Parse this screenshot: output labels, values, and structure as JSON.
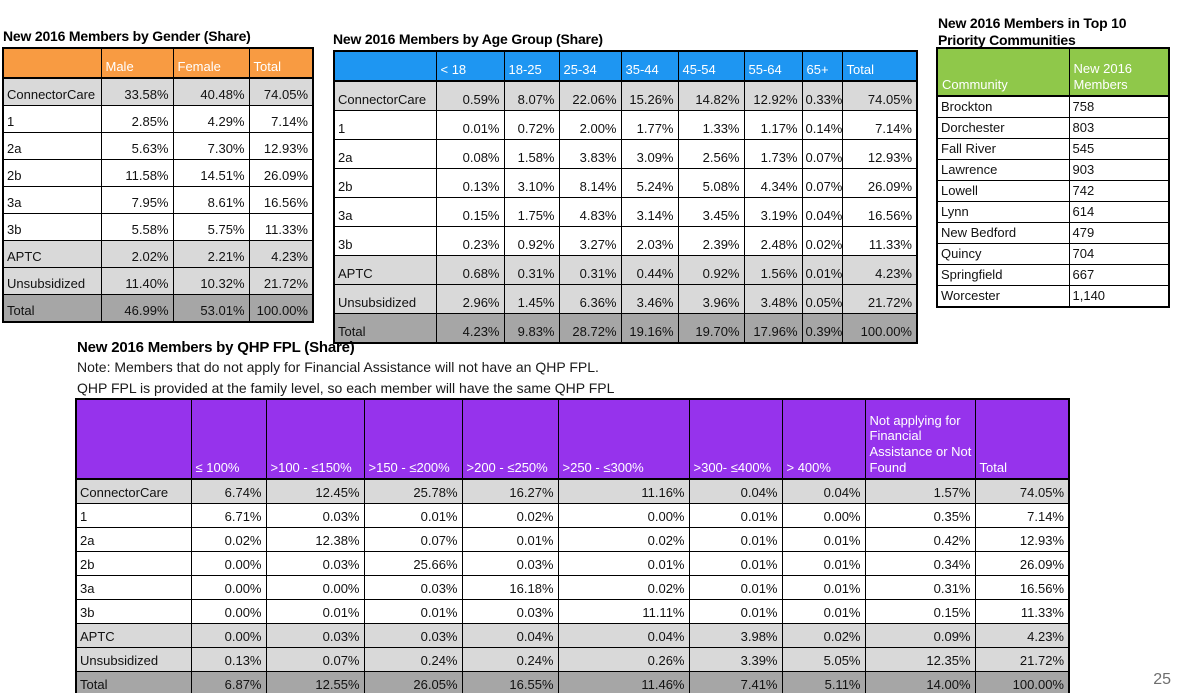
{
  "slide": {
    "page_number": "25"
  },
  "colors": {
    "orange": "#F89B42",
    "blue": "#1E96F2",
    "green": "#8FC84A",
    "purple": "#9633EC",
    "row_shade_light": "#D9D9D9",
    "row_shade_total": "#A6A6A6",
    "header_text": "#FFFFFF",
    "page_number_gray": "#6E6E6E"
  },
  "gender_table": {
    "title": "New 2016 Members by Gender (Share)",
    "columns": [
      "",
      "Male",
      "Female",
      "Total"
    ],
    "rows": [
      {
        "label": "ConnectorCare",
        "shade": "light",
        "values": [
          "33.58%",
          "40.48%",
          "74.05%"
        ]
      },
      {
        "label": "1",
        "shade": "white",
        "values": [
          "2.85%",
          "4.29%",
          "7.14%"
        ]
      },
      {
        "label": "2a",
        "shade": "white",
        "values": [
          "5.63%",
          "7.30%",
          "12.93%"
        ]
      },
      {
        "label": "2b",
        "shade": "white",
        "values": [
          "11.58%",
          "14.51%",
          "26.09%"
        ]
      },
      {
        "label": "3a",
        "shade": "white",
        "values": [
          "7.95%",
          "8.61%",
          "16.56%"
        ]
      },
      {
        "label": "3b",
        "shade": "white",
        "values": [
          "5.58%",
          "5.75%",
          "11.33%"
        ]
      },
      {
        "label": "APTC",
        "shade": "light",
        "values": [
          "2.02%",
          "2.21%",
          "4.23%"
        ]
      },
      {
        "label": "Unsubsidized",
        "shade": "light",
        "values": [
          "11.40%",
          "10.32%",
          "21.72%"
        ]
      },
      {
        "label": "Total",
        "shade": "total",
        "values": [
          "46.99%",
          "53.01%",
          "100.00%"
        ]
      }
    ]
  },
  "age_table": {
    "title": "New 2016 Members by Age Group (Share)",
    "columns": [
      "",
      "< 18",
      "18-25",
      "25-34",
      "35-44",
      "45-54",
      "55-64",
      "65+",
      "Total"
    ],
    "rows": [
      {
        "label": "ConnectorCare",
        "shade": "light",
        "values": [
          "0.59%",
          "8.07%",
          "22.06%",
          "15.26%",
          "14.82%",
          "12.92%",
          "0.33%",
          "74.05%"
        ]
      },
      {
        "label": "1",
        "shade": "white",
        "values": [
          "0.01%",
          "0.72%",
          "2.00%",
          "1.77%",
          "1.33%",
          "1.17%",
          "0.14%",
          "7.14%"
        ]
      },
      {
        "label": "2a",
        "shade": "white",
        "values": [
          "0.08%",
          "1.58%",
          "3.83%",
          "3.09%",
          "2.56%",
          "1.73%",
          "0.07%",
          "12.93%"
        ]
      },
      {
        "label": "2b",
        "shade": "white",
        "values": [
          "0.13%",
          "3.10%",
          "8.14%",
          "5.24%",
          "5.08%",
          "4.34%",
          "0.07%",
          "26.09%"
        ]
      },
      {
        "label": "3a",
        "shade": "white",
        "values": [
          "0.15%",
          "1.75%",
          "4.83%",
          "3.14%",
          "3.45%",
          "3.19%",
          "0.04%",
          "16.56%"
        ]
      },
      {
        "label": "3b",
        "shade": "white",
        "values": [
          "0.23%",
          "0.92%",
          "3.27%",
          "2.03%",
          "2.39%",
          "2.48%",
          "0.02%",
          "11.33%"
        ]
      },
      {
        "label": "APTC",
        "shade": "light",
        "values": [
          "0.68%",
          "0.31%",
          "0.31%",
          "0.44%",
          "0.92%",
          "1.56%",
          "0.01%",
          "4.23%"
        ]
      },
      {
        "label": "Unsubsidized",
        "shade": "light",
        "values": [
          "2.96%",
          "1.45%",
          "6.36%",
          "3.46%",
          "3.96%",
          "3.48%",
          "0.05%",
          "21.72%"
        ]
      },
      {
        "label": "Total",
        "shade": "total",
        "values": [
          "4.23%",
          "9.83%",
          "28.72%",
          "19.16%",
          "19.70%",
          "17.96%",
          "0.39%",
          "100.00%"
        ]
      }
    ]
  },
  "communities_table": {
    "title": "New 2016 Members in Top 10 Priority Communities",
    "columns": [
      "Community",
      "New 2016 Members"
    ],
    "rows": [
      {
        "label": "Brockton",
        "shade": "white",
        "values": [
          "758"
        ]
      },
      {
        "label": "Dorchester",
        "shade": "white",
        "values": [
          "803"
        ]
      },
      {
        "label": "Fall River",
        "shade": "white",
        "values": [
          "545"
        ]
      },
      {
        "label": "Lawrence",
        "shade": "white",
        "values": [
          "903"
        ]
      },
      {
        "label": "Lowell",
        "shade": "white",
        "values": [
          "742"
        ]
      },
      {
        "label": "Lynn",
        "shade": "white",
        "values": [
          "614"
        ]
      },
      {
        "label": "New Bedford",
        "shade": "white",
        "values": [
          "479"
        ]
      },
      {
        "label": "Quincy",
        "shade": "white",
        "values": [
          "704"
        ]
      },
      {
        "label": "Springfield",
        "shade": "white",
        "values": [
          "667"
        ]
      },
      {
        "label": "Worcester",
        "shade": "white",
        "values": [
          "1,140"
        ]
      }
    ]
  },
  "fpl_table": {
    "title": "New 2016 Members by QHP FPL (Share)",
    "notes": [
      "Note: Members that do not apply for Financial Assistance will not have an QHP FPL.",
      "QHP FPL is provided at the family level, so each member will have the same QHP FPL"
    ],
    "columns": [
      "",
      "≤ 100%",
      ">100 - ≤150%",
      ">150 - ≤200%",
      ">200 - ≤250%",
      ">250 - ≤300%",
      ">300- ≤400%",
      "> 400%",
      "Not applying for Financial Assistance or Not Found",
      "Total"
    ],
    "rows": [
      {
        "label": "ConnectorCare",
        "shade": "light",
        "values": [
          "6.74%",
          "12.45%",
          "25.78%",
          "16.27%",
          "11.16%",
          "0.04%",
          "0.04%",
          "1.57%",
          "74.05%"
        ]
      },
      {
        "label": "1",
        "shade": "white",
        "values": [
          "6.71%",
          "0.03%",
          "0.01%",
          "0.02%",
          "0.00%",
          "0.01%",
          "0.00%",
          "0.35%",
          "7.14%"
        ]
      },
      {
        "label": "2a",
        "shade": "white",
        "values": [
          "0.02%",
          "12.38%",
          "0.07%",
          "0.01%",
          "0.02%",
          "0.01%",
          "0.01%",
          "0.42%",
          "12.93%"
        ]
      },
      {
        "label": "2b",
        "shade": "white",
        "values": [
          "0.00%",
          "0.03%",
          "25.66%",
          "0.03%",
          "0.01%",
          "0.01%",
          "0.01%",
          "0.34%",
          "26.09%"
        ]
      },
      {
        "label": "3a",
        "shade": "white",
        "values": [
          "0.00%",
          "0.00%",
          "0.03%",
          "16.18%",
          "0.02%",
          "0.01%",
          "0.01%",
          "0.31%",
          "16.56%"
        ]
      },
      {
        "label": "3b",
        "shade": "white",
        "values": [
          "0.00%",
          "0.01%",
          "0.01%",
          "0.03%",
          "11.11%",
          "0.01%",
          "0.01%",
          "0.15%",
          "11.33%"
        ]
      },
      {
        "label": "APTC",
        "shade": "light",
        "values": [
          "0.00%",
          "0.03%",
          "0.03%",
          "0.04%",
          "0.04%",
          "3.98%",
          "0.02%",
          "0.09%",
          "4.23%"
        ]
      },
      {
        "label": "Unsubsidized",
        "shade": "light",
        "values": [
          "0.13%",
          "0.07%",
          "0.24%",
          "0.24%",
          "0.26%",
          "3.39%",
          "5.05%",
          "12.35%",
          "21.72%"
        ]
      },
      {
        "label": "Total",
        "shade": "total",
        "values": [
          "6.87%",
          "12.55%",
          "26.05%",
          "16.55%",
          "11.46%",
          "7.41%",
          "5.11%",
          "14.00%",
          "100.00%"
        ]
      }
    ]
  }
}
